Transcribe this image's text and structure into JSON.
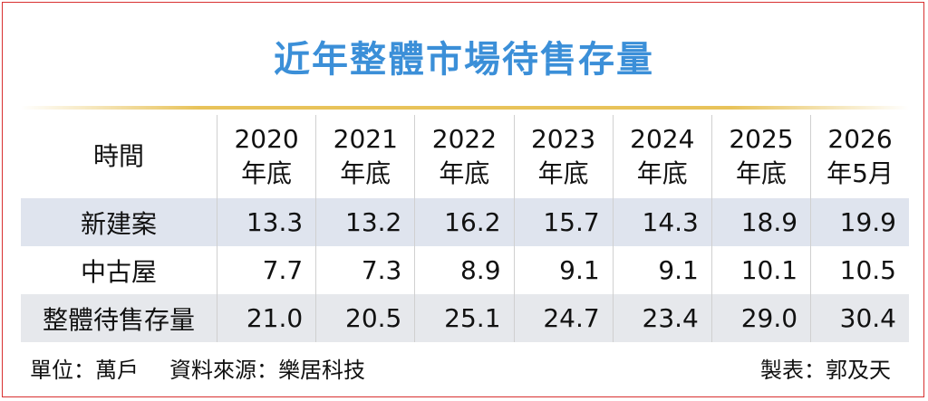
{
  "title": "近年整體市場待售存量",
  "table": {
    "header": {
      "label": "時間",
      "columns": [
        {
          "year": "2020",
          "period": "年底"
        },
        {
          "year": "2021",
          "period": "年底"
        },
        {
          "year": "2022",
          "period": "年底"
        },
        {
          "year": "2023",
          "period": "年底"
        },
        {
          "year": "2024",
          "period": "年底"
        },
        {
          "year": "2025",
          "period": "年底"
        },
        {
          "year": "2026",
          "period": "年5月"
        }
      ]
    },
    "rows": [
      {
        "label": "新建案",
        "values": [
          "13.3",
          "13.2",
          "16.2",
          "15.7",
          "14.3",
          "18.9",
          "19.9"
        ]
      },
      {
        "label": "中古屋",
        "values": [
          "7.7",
          "7.3",
          "8.9",
          "9.1",
          "9.1",
          "10.1",
          "10.5"
        ]
      },
      {
        "label": "整體待售存量",
        "values": [
          "21.0",
          "20.5",
          "25.1",
          "24.7",
          "23.4",
          "29.0",
          "30.4"
        ]
      }
    ]
  },
  "footer": {
    "unit": "單位：萬戶",
    "source": "資料來源：樂居科技",
    "credit": "製表：郭及天"
  }
}
